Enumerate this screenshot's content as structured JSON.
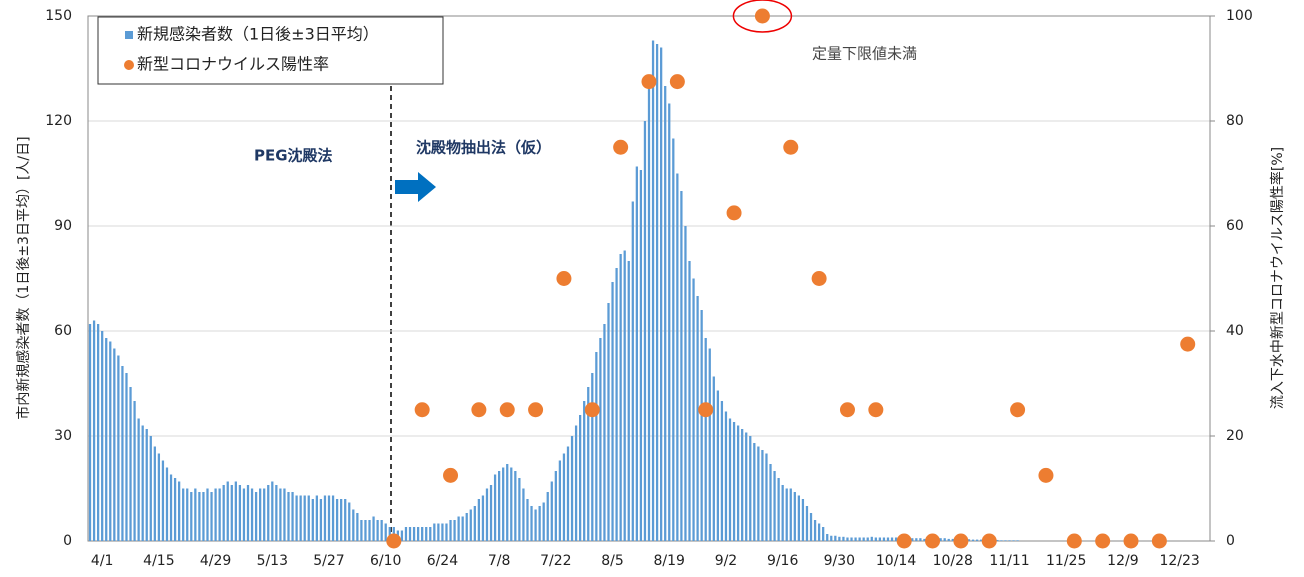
{
  "chart_data": {
    "type": "bar",
    "y_label": "市内新規感染者数（1日後±3日平均）[人/日]",
    "y2_label": "流入下水中新型コロナウイルス陽性率[%]",
    "annotations": [
      "PEG沈殿法",
      "沈殿物抽出法（仮）",
      "定量下限値未満"
    ],
    "categories": [
      null,
      null,
      null,
      "4/1",
      null,
      null,
      null,
      null,
      null,
      null,
      null,
      null,
      null,
      null,
      null,
      null,
      null,
      "4/15",
      null,
      null,
      null,
      null,
      null,
      null,
      null,
      null,
      null,
      null,
      null,
      null,
      null,
      "4/29",
      null,
      null,
      null,
      null,
      null,
      null,
      null,
      null,
      null,
      null,
      null,
      null,
      null,
      "5/13",
      null,
      null,
      null,
      null,
      null,
      null,
      null,
      null,
      null,
      null,
      null,
      null,
      null,
      "5/27",
      null,
      null,
      null,
      null,
      null,
      null,
      null,
      null,
      null,
      null,
      null,
      null,
      null,
      "6/10",
      null,
      null,
      null,
      null,
      null,
      null,
      null,
      null,
      null,
      null,
      null,
      null,
      null,
      "6/24",
      null,
      null,
      null,
      null,
      null,
      null,
      null,
      null,
      null,
      null,
      null,
      null,
      null,
      "7/8",
      null,
      null,
      null,
      null,
      null,
      null,
      null,
      null,
      null,
      null,
      null,
      null,
      null,
      "7/22",
      null,
      null,
      null,
      null,
      null,
      null,
      null,
      null,
      null,
      null,
      null,
      null,
      null,
      "8/5",
      null,
      null,
      null,
      null,
      null,
      null,
      null,
      null,
      null,
      null,
      null,
      null,
      null,
      "8/19",
      null,
      null,
      null,
      null,
      null,
      null,
      null,
      null,
      null,
      null,
      null,
      null,
      null,
      "9/2",
      null,
      null,
      null,
      null,
      null,
      null,
      null,
      null,
      null,
      null,
      null,
      null,
      null,
      "9/16",
      null,
      null,
      null,
      null,
      null,
      null,
      null,
      null,
      null,
      null,
      null,
      null,
      null,
      "9/30",
      null,
      null,
      null,
      null,
      null,
      null,
      null,
      null,
      null,
      null,
      null,
      null,
      null,
      "10/14",
      null,
      null,
      null,
      null,
      null,
      null,
      null,
      null,
      null,
      null,
      null,
      null,
      null,
      "10/28",
      null,
      null,
      null,
      null,
      null,
      null,
      null,
      null,
      null,
      null,
      null,
      null,
      null,
      "11/11",
      null,
      null,
      null,
      null,
      null,
      null,
      null,
      null,
      null,
      null,
      null,
      null,
      null,
      "11/25",
      null,
      null,
      null,
      null,
      null,
      null,
      null,
      null,
      null,
      null,
      null,
      null,
      null,
      "12/9",
      null,
      null,
      null,
      null,
      null,
      null,
      null,
      null,
      null,
      null,
      null,
      null,
      null,
      "12/23",
      null,
      null,
      null,
      null,
      null,
      null,
      null
    ],
    "series": [
      {
        "name": "新規感染者数（1日後±3日平均）",
        "type": "bar",
        "color": "#5b9bd5",
        "values": [
          62,
          63,
          62,
          60,
          58,
          57,
          55,
          53,
          50,
          48,
          44,
          40,
          35,
          33,
          32,
          30,
          27,
          25,
          23,
          21,
          19,
          18,
          17,
          15,
          15,
          14,
          15,
          14,
          14,
          15,
          14,
          15,
          15,
          16,
          17,
          16,
          17,
          16,
          15,
          16,
          15,
          14,
          15,
          15,
          16,
          17,
          16,
          15,
          15,
          14,
          14,
          13,
          13,
          13,
          13,
          12,
          13,
          12,
          13,
          13,
          13,
          12,
          12,
          12,
          11,
          9,
          8,
          6,
          6,
          6,
          7,
          6,
          6,
          5,
          4,
          4,
          3,
          3,
          4,
          4,
          4,
          4,
          4,
          4,
          4,
          5,
          5,
          5,
          5,
          6,
          6,
          7,
          7,
          8,
          9,
          10,
          12,
          13,
          15,
          16,
          19,
          20,
          21,
          22,
          21,
          20,
          18,
          15,
          12,
          10,
          9,
          10,
          11,
          14,
          17,
          20,
          23,
          25,
          27,
          30,
          33,
          36,
          40,
          44,
          48,
          54,
          58,
          62,
          68,
          74,
          78,
          82,
          83,
          80,
          97,
          107,
          106,
          120,
          130,
          143,
          142,
          141,
          130,
          125,
          115,
          105,
          100,
          90,
          80,
          75,
          70,
          66,
          58,
          55,
          47,
          43,
          40,
          37,
          35,
          34,
          33,
          32,
          31,
          30,
          28,
          27,
          26,
          25,
          22,
          20,
          18,
          16,
          15,
          15,
          14,
          13,
          12,
          10,
          8,
          6,
          5,
          4,
          2,
          1.5,
          1.5,
          1.2,
          1.2,
          1,
          1,
          1,
          1,
          1,
          1,
          1.2,
          1,
          1,
          1,
          1,
          1,
          1,
          1,
          1,
          0.8,
          0.8,
          0.8,
          0.8,
          0.6,
          0.6,
          0.6,
          0.6,
          0.8,
          0.8,
          0.6,
          0.6,
          0.6,
          0.5,
          0.5,
          0.5,
          0.4,
          0.4,
          0.4,
          0.4,
          0.3,
          0.3,
          0.3,
          0.2,
          0.2,
          0.2,
          0.2,
          0.2,
          0,
          0,
          0,
          0,
          0,
          0,
          0,
          0,
          0,
          0,
          0,
          0,
          0,
          0,
          0,
          0,
          0,
          0,
          0,
          0,
          0,
          0,
          0,
          0,
          0,
          0,
          0,
          0,
          0,
          0,
          0,
          0,
          0,
          0,
          0,
          0,
          0,
          0,
          0,
          0,
          0,
          0,
          0,
          0,
          0,
          0,
          0
        ]
      },
      {
        "name": "新型コロナウイルス陽性率",
        "type": "scatter",
        "axis": "y2",
        "color": "#ed7d31",
        "values": [
          null,
          null,
          null,
          null,
          null,
          null,
          null,
          null,
          null,
          null,
          null,
          null,
          null,
          null,
          null,
          null,
          null,
          null,
          null,
          null,
          null,
          null,
          null,
          null,
          null,
          null,
          null,
          null,
          null,
          null,
          null,
          null,
          null,
          null,
          null,
          null,
          null,
          null,
          null,
          null,
          null,
          null,
          null,
          null,
          null,
          null,
          null,
          null,
          null,
          null,
          null,
          null,
          null,
          null,
          null,
          null,
          null,
          null,
          null,
          null,
          null,
          null,
          null,
          null,
          null,
          null,
          null,
          null,
          null,
          null,
          null,
          null,
          null,
          null,
          null,
          0,
          null,
          null,
          null,
          null,
          null,
          null,
          25,
          null,
          null,
          null,
          null,
          null,
          null,
          12.5,
          null,
          null,
          null,
          null,
          null,
          null,
          25,
          null,
          null,
          null,
          null,
          null,
          null,
          25,
          null,
          null,
          null,
          null,
          null,
          null,
          25,
          null,
          null,
          null,
          null,
          null,
          null,
          50,
          null,
          null,
          null,
          null,
          null,
          null,
          25,
          null,
          null,
          null,
          null,
          null,
          null,
          75,
          null,
          null,
          null,
          null,
          null,
          null,
          87.5,
          null,
          null,
          null,
          null,
          null,
          null,
          87.5,
          null,
          null,
          null,
          null,
          null,
          null,
          25,
          null,
          null,
          null,
          null,
          null,
          null,
          62.5,
          null,
          null,
          null,
          null,
          null,
          null,
          100,
          null,
          null,
          null,
          null,
          null,
          null,
          75,
          null,
          null,
          null,
          null,
          null,
          null,
          50,
          null,
          null,
          null,
          null,
          null,
          null,
          25,
          null,
          null,
          null,
          null,
          null,
          null,
          25,
          null,
          null,
          null,
          null,
          null,
          null,
          0,
          null,
          null,
          null,
          null,
          null,
          null,
          0,
          null,
          null,
          null,
          null,
          null,
          null,
          0,
          null,
          null,
          null,
          null,
          null,
          null,
          0,
          null,
          null,
          null,
          null,
          null,
          null,
          25,
          null,
          null,
          null,
          null,
          null,
          null,
          12.5,
          null,
          null,
          null,
          null,
          null,
          null,
          0,
          null,
          null,
          null,
          null,
          null,
          null,
          0,
          null,
          null,
          null,
          null,
          null,
          null,
          0,
          null,
          null,
          null,
          null,
          null,
          null,
          0,
          null,
          null,
          null,
          null,
          null,
          null,
          37.5,
          null,
          null,
          null,
          null,
          null
        ]
      }
    ],
    "ylim": [
      0,
      150
    ],
    "yticks": [
      0,
      30,
      60,
      90,
      120,
      150
    ],
    "y2lim": [
      0,
      100
    ],
    "y2ticks": [
      0,
      20,
      40,
      60,
      80,
      100
    ],
    "grid": true
  }
}
